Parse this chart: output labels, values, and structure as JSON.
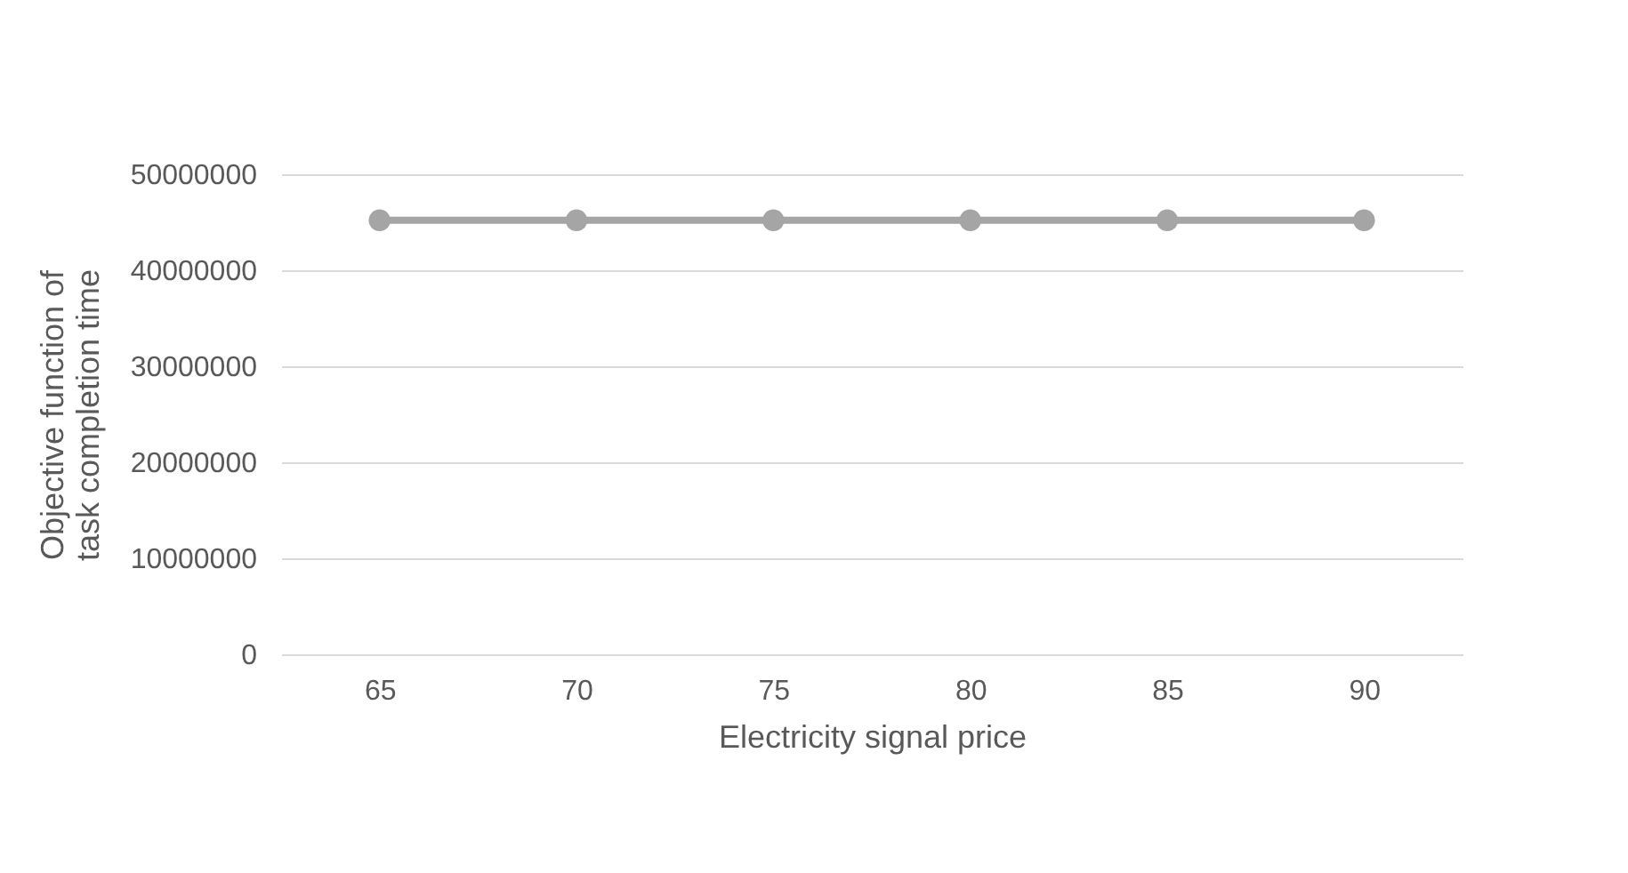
{
  "chart_data": {
    "type": "line",
    "xlabel": "Electricity signal price",
    "ylabel": "Objective function of task completion time",
    "categories": [
      "65",
      "70",
      "75",
      "80",
      "85",
      "90"
    ],
    "series": [
      {
        "color": "#a5a5a5",
        "values": [
          45200000,
          45200000,
          45200000,
          45200000,
          45200000,
          45200000
        ]
      }
    ],
    "ylim": [
      0,
      50000000
    ],
    "yticks": [
      0,
      10000000,
      20000000,
      30000000,
      40000000,
      50000000
    ],
    "grid": "y",
    "marker": "circle",
    "line_style": "solid"
  }
}
